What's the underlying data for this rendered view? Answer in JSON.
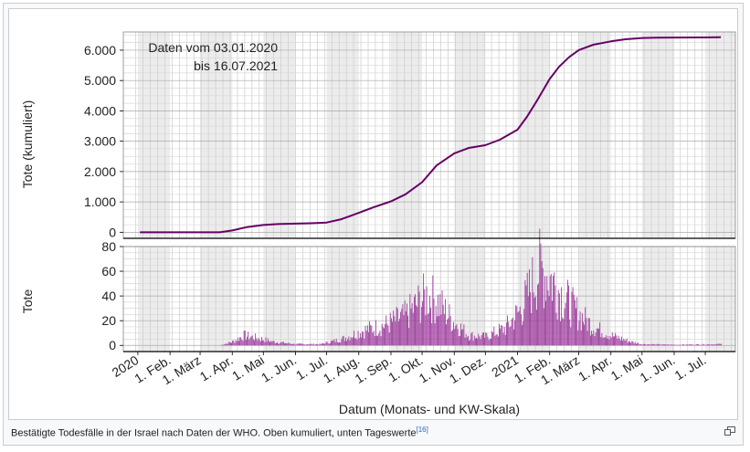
{
  "caption": {
    "text": "Bestätigte Todesfälle in der Israel nach Daten der WHO. Oben kumuliert, unten Tageswerte",
    "ref": "[16]"
  },
  "icons": {
    "enlarge": "enlarge-icon"
  },
  "chart_data": [
    {
      "type": "line",
      "ylabel": "Tote (kumuliert)",
      "annotation": [
        "Daten vom 03.01.2020",
        "bis 16.07.2021"
      ],
      "ylim": [
        -200,
        6600
      ],
      "yticks": [
        0,
        1000,
        2000,
        3000,
        4000,
        5000,
        6000
      ],
      "ytick_labels": [
        "0",
        "1.000",
        "2.000",
        "3.000",
        "4.000",
        "5.000",
        "6.000"
      ],
      "color": "#660066",
      "x": [
        "2020-01-03",
        "2020-02-01",
        "2020-03-01",
        "2020-03-20",
        "2020-04-01",
        "2020-04-15",
        "2020-05-01",
        "2020-05-15",
        "2020-06-01",
        "2020-06-15",
        "2020-07-01",
        "2020-07-15",
        "2020-08-01",
        "2020-08-15",
        "2020-09-01",
        "2020-09-15",
        "2020-10-01",
        "2020-10-15",
        "2020-11-01",
        "2020-11-15",
        "2020-12-01",
        "2020-12-15",
        "2021-01-01",
        "2021-01-10",
        "2021-01-20",
        "2021-02-01",
        "2021-02-10",
        "2021-02-20",
        "2021-03-01",
        "2021-03-15",
        "2021-04-01",
        "2021-04-15",
        "2021-05-01",
        "2021-05-15",
        "2021-06-01",
        "2021-07-01",
        "2021-07-16"
      ],
      "y": [
        0,
        0,
        0,
        0,
        60,
        170,
        240,
        270,
        285,
        295,
        320,
        430,
        640,
        820,
        1020,
        1250,
        1650,
        2200,
        2600,
        2780,
        2870,
        3050,
        3380,
        3800,
        4350,
        5050,
        5450,
        5780,
        6000,
        6180,
        6290,
        6360,
        6400,
        6410,
        6415,
        6420,
        6425
      ]
    },
    {
      "type": "bar",
      "ylabel": "Tote",
      "xlabel": "Datum (Monats- und KW-Skala)",
      "ylim": [
        -5,
        80
      ],
      "yticks": [
        0,
        20,
        40,
        60,
        80
      ],
      "ytick_labels": [
        "0",
        "20",
        "40",
        "60",
        "80"
      ],
      "color": "#993399",
      "daily_profile": {
        "x": [
          "2020-01-03",
          "2020-03-20",
          "2020-04-01",
          "2020-04-12",
          "2020-04-25",
          "2020-05-10",
          "2020-06-01",
          "2020-06-25",
          "2020-07-15",
          "2020-08-05",
          "2020-08-25",
          "2020-09-15",
          "2020-09-28",
          "2020-10-05",
          "2020-10-15",
          "2020-10-30",
          "2020-11-15",
          "2020-12-01",
          "2020-12-20",
          "2021-01-05",
          "2021-01-15",
          "2021-01-22",
          "2021-02-01",
          "2021-02-15",
          "2021-03-01",
          "2021-03-15",
          "2021-04-01",
          "2021-04-20",
          "2021-05-01",
          "2021-06-01",
          "2021-07-16"
        ],
        "y": [
          0,
          0,
          3,
          8,
          6,
          3,
          1,
          1,
          5,
          12,
          16,
          24,
          35,
          40,
          36,
          20,
          8,
          7,
          14,
          30,
          50,
          62,
          55,
          38,
          25,
          15,
          8,
          3,
          1,
          0.5,
          1
        ]
      },
      "x_tick_labels": [
        "2020",
        "1. Feb.",
        "1. März",
        "1. Apr.",
        "1. Mai",
        "1. Jun.",
        "1. Jul.",
        "1. Aug.",
        "1. Sep.",
        "1. Okt.",
        "1. Nov.",
        "1. Dez.",
        "2021",
        "1. Feb.",
        "1. März",
        "1. Apr.",
        "1. Mai",
        "1. Jun.",
        "1. Jul."
      ],
      "x_tick_dates": [
        "2020-01-01",
        "2020-02-01",
        "2020-03-01",
        "2020-04-01",
        "2020-05-01",
        "2020-06-01",
        "2020-07-01",
        "2020-08-01",
        "2020-09-01",
        "2020-10-01",
        "2020-11-01",
        "2020-12-01",
        "2021-01-01",
        "2021-02-01",
        "2021-03-01",
        "2021-04-01",
        "2021-05-01",
        "2021-06-01",
        "2021-07-01"
      ]
    }
  ]
}
